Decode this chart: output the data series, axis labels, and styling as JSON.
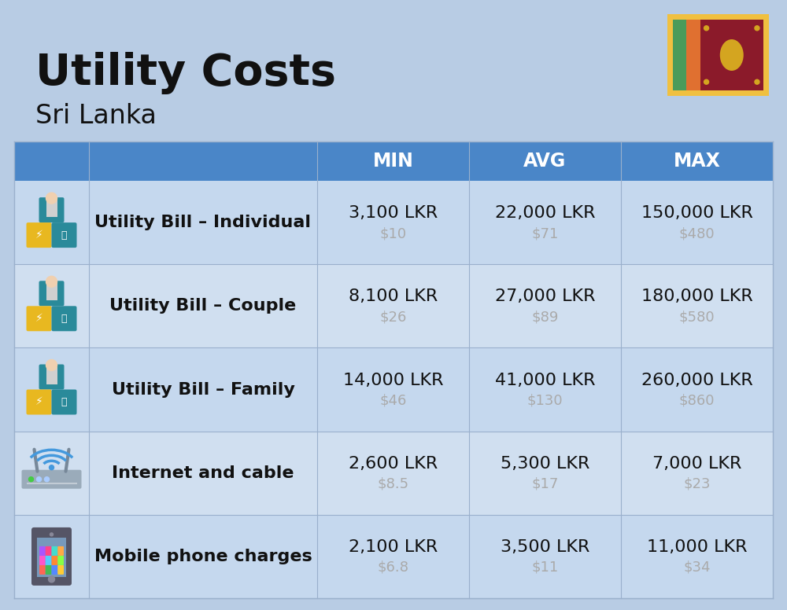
{
  "title": "Utility Costs",
  "subtitle": "Sri Lanka",
  "background_color": "#b8cce4",
  "header_bg_color": "#4a86c8",
  "header_text_color": "#ffffff",
  "row_bg_color_even": "#c5d8ee",
  "row_bg_color_odd": "#d0dff0",
  "col_header_labels": [
    "MIN",
    "AVG",
    "MAX"
  ],
  "rows": [
    {
      "label": "Utility Bill – Individual",
      "icon": "utility",
      "min_lkr": "3,100 LKR",
      "min_usd": "$10",
      "avg_lkr": "22,000 LKR",
      "avg_usd": "$71",
      "max_lkr": "150,000 LKR",
      "max_usd": "$480"
    },
    {
      "label": "Utility Bill – Couple",
      "icon": "utility",
      "min_lkr": "8,100 LKR",
      "min_usd": "$26",
      "avg_lkr": "27,000 LKR",
      "avg_usd": "$89",
      "max_lkr": "180,000 LKR",
      "max_usd": "$580"
    },
    {
      "label": "Utility Bill – Family",
      "icon": "utility",
      "min_lkr": "14,000 LKR",
      "min_usd": "$46",
      "avg_lkr": "41,000 LKR",
      "avg_usd": "$130",
      "max_lkr": "260,000 LKR",
      "max_usd": "$860"
    },
    {
      "label": "Internet and cable",
      "icon": "internet",
      "min_lkr": "2,600 LKR",
      "min_usd": "$8.5",
      "avg_lkr": "5,300 LKR",
      "avg_usd": "$17",
      "max_lkr": "7,000 LKR",
      "max_usd": "$23"
    },
    {
      "label": "Mobile phone charges",
      "icon": "mobile",
      "min_lkr": "2,100 LKR",
      "min_usd": "$6.8",
      "avg_lkr": "3,500 LKR",
      "avg_usd": "$11",
      "max_lkr": "11,000 LKR",
      "max_usd": "$34"
    }
  ],
  "lkr_fontsize": 16,
  "usd_fontsize": 13,
  "label_fontsize": 16,
  "header_fontsize": 17,
  "title_fontsize": 40,
  "subtitle_fontsize": 24,
  "usd_color": "#aaaaaa",
  "text_color": "#111111",
  "divider_color": "#9ab0cc",
  "flag_border_color": "#f0c040",
  "flag_green": "#4a9b5a",
  "flag_orange": "#e07030",
  "flag_maroon": "#8b1a2a"
}
